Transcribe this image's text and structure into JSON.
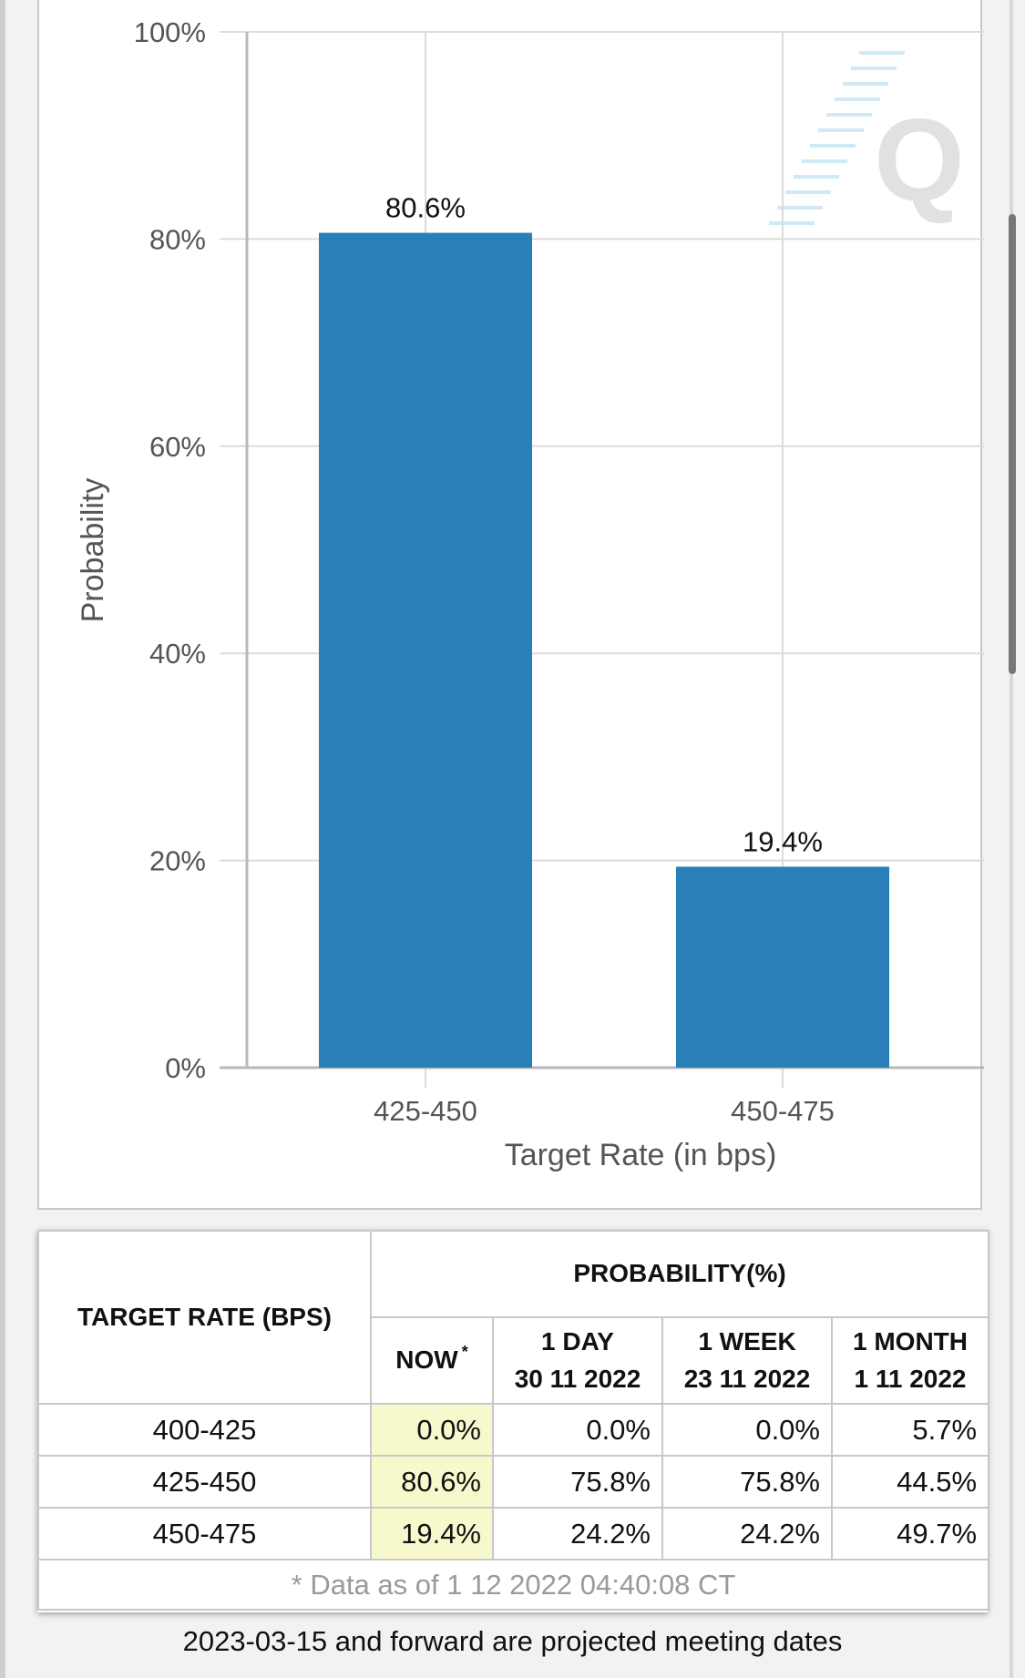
{
  "chart_data": {
    "type": "bar",
    "categories": [
      "425-450",
      "450-475"
    ],
    "values": [
      80.6,
      19.4
    ],
    "data_labels": [
      "80.6%",
      "19.4%"
    ],
    "xlabel": "Target Rate (in bps)",
    "ylabel": "Probability",
    "ylim": [
      0,
      100
    ],
    "yticks": [
      "0%",
      "20%",
      "40%",
      "60%",
      "80%",
      "100%"
    ],
    "grid": true,
    "bar_color": "#2980b9",
    "watermark": "Q"
  },
  "table": {
    "col_header": "TARGET RATE (BPS)",
    "prob_header": "PROBABILITY(%)",
    "columns": [
      {
        "line1": "NOW",
        "line2": "",
        "sup": "*"
      },
      {
        "line1": "1 DAY",
        "line2": "30 11 2022",
        "sup": ""
      },
      {
        "line1": "1 WEEK",
        "line2": "23 11 2022",
        "sup": ""
      },
      {
        "line1": "1 MONTH",
        "line2": "1 11 2022",
        "sup": ""
      }
    ],
    "rows": [
      {
        "rate": "400-425",
        "vals": [
          "0.0%",
          "0.0%",
          "0.0%",
          "5.7%"
        ]
      },
      {
        "rate": "425-450",
        "vals": [
          "80.6%",
          "75.8%",
          "75.8%",
          "44.5%"
        ]
      },
      {
        "rate": "450-475",
        "vals": [
          "19.4%",
          "24.2%",
          "24.2%",
          "49.7%"
        ]
      }
    ],
    "note": "* Data as of 1 12 2022 04:40:08 CT",
    "now_highlight_color": "#f8f8cd"
  },
  "footer_text": "2023-03-15 and forward are projected meeting dates"
}
